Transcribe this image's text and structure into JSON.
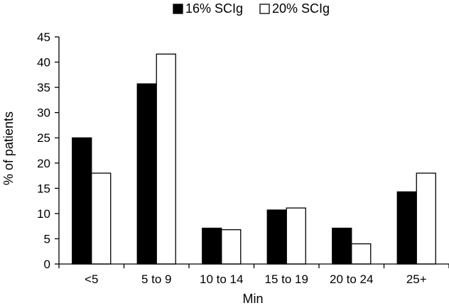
{
  "chart_data": {
    "type": "bar",
    "title": "",
    "xlabel": "Min",
    "ylabel": "% of patients",
    "categories": [
      "<5",
      "5 to 9",
      "10 to 14",
      "15 to 19",
      "20 to 24",
      "25+"
    ],
    "ylim": [
      0,
      45
    ],
    "yticks": [
      "0",
      "5",
      "10",
      "15",
      "20",
      "25",
      "30",
      "35",
      "40",
      "45"
    ],
    "grid": false,
    "legend_position": "top",
    "series": [
      {
        "name": "16% SCIg",
        "values": [
          25,
          35.7,
          7.1,
          10.7,
          7.1,
          14.3
        ],
        "color": "#000000"
      },
      {
        "name": "20% SCIg",
        "values": [
          18,
          41.6,
          6.8,
          11.1,
          4.0,
          18
        ],
        "color": "#ffffff"
      }
    ]
  }
}
